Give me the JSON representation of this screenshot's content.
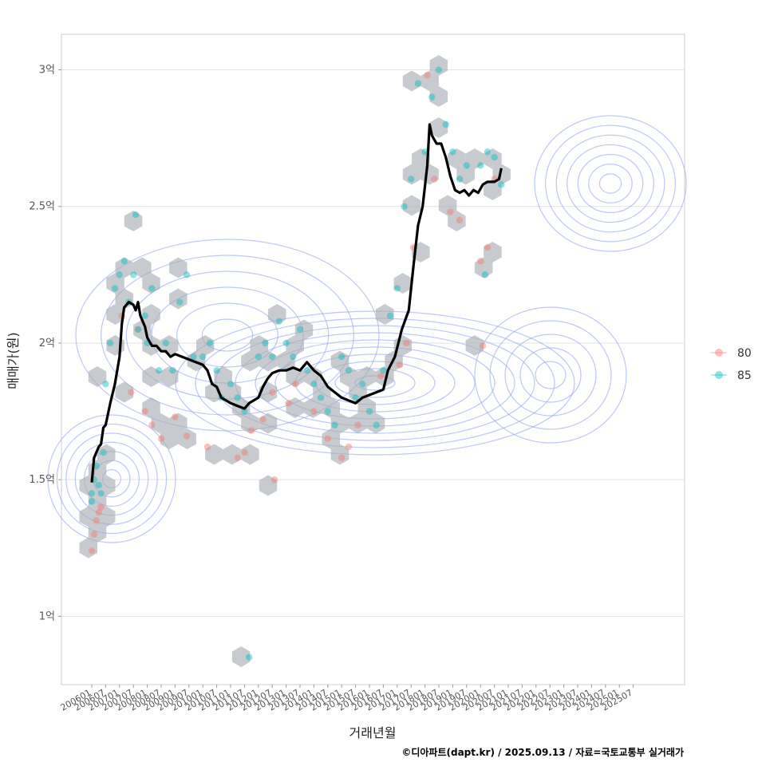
{
  "chart_data": {
    "type": "scatter",
    "title": "",
    "xlabel": "거래년월",
    "ylabel": "매매가(원)",
    "caption": "©디아파트(dapt.kr) / 2025.09.13 / 자료=국토교통부 실거래가",
    "y_ticks": [
      {
        "value": 1.0,
        "label": "1억"
      },
      {
        "value": 1.5,
        "label": "1.5억"
      },
      {
        "value": 2.0,
        "label": "2억"
      },
      {
        "value": 2.5,
        "label": "2.5억"
      },
      {
        "value": 3.0,
        "label": "3억"
      }
    ],
    "x_ticks": [
      "200601",
      "200607",
      "200701",
      "200707",
      "200801",
      "200807",
      "200901",
      "200907",
      "201001",
      "201007",
      "201101",
      "201107",
      "201201",
      "201207",
      "201301",
      "201307",
      "201401",
      "201407",
      "201501",
      "201507",
      "201601",
      "201607",
      "201701",
      "201707",
      "201801",
      "201807",
      "201901",
      "201907",
      "202001",
      "202007",
      "202101",
      "202107",
      "202201",
      "202207",
      "202301",
      "202307",
      "202401",
      "202407",
      "202501",
      "202507"
    ],
    "ylim": [
      0.75,
      3.13
    ],
    "grid": true,
    "legend_position": "right",
    "colors": {
      "series_80": "#F8766D",
      "series_85": "#00BFC4",
      "hexbin": "#A9AEB3",
      "density": "#8FA3F0",
      "trend": "#000000",
      "grid": "#E3E3E3",
      "frame": "#CCCCCC"
    },
    "legend": [
      {
        "label": "80",
        "color": "#F8766D"
      },
      {
        "label": "85",
        "color": "#00BFC4"
      }
    ],
    "trend_line": [
      [
        "200601",
        1.49
      ],
      [
        "200602",
        1.58
      ],
      [
        "200603",
        1.6
      ],
      [
        "200604",
        1.62
      ],
      [
        "200605",
        1.63
      ],
      [
        "200606",
        1.69
      ],
      [
        "200607",
        1.7
      ],
      [
        "200609",
        1.78
      ],
      [
        "200611",
        1.85
      ],
      [
        "200701",
        1.95
      ],
      [
        "200702",
        2.07
      ],
      [
        "200703",
        2.13
      ],
      [
        "200705",
        2.15
      ],
      [
        "200707",
        2.14
      ],
      [
        "200708",
        2.12
      ],
      [
        "200709",
        2.15
      ],
      [
        "200710",
        2.1
      ],
      [
        "200712",
        2.06
      ],
      [
        "200801",
        2.02
      ],
      [
        "200803",
        1.99
      ],
      [
        "200805",
        1.99
      ],
      [
        "200807",
        1.97
      ],
      [
        "200809",
        1.97
      ],
      [
        "200811",
        1.95
      ],
      [
        "200901",
        1.96
      ],
      [
        "200904",
        1.95
      ],
      [
        "200907",
        1.94
      ],
      [
        "200910",
        1.93
      ],
      [
        "201001",
        1.92
      ],
      [
        "201003",
        1.9
      ],
      [
        "201005",
        1.85
      ],
      [
        "201007",
        1.84
      ],
      [
        "201009",
        1.8
      ],
      [
        "201101",
        1.78
      ],
      [
        "201104",
        1.77
      ],
      [
        "201107",
        1.76
      ],
      [
        "201109",
        1.78
      ],
      [
        "201201",
        1.8
      ],
      [
        "201203",
        1.84
      ],
      [
        "201205",
        1.87
      ],
      [
        "201207",
        1.89
      ],
      [
        "201210",
        1.9
      ],
      [
        "201301",
        1.9
      ],
      [
        "201304",
        1.91
      ],
      [
        "201307",
        1.9
      ],
      [
        "201310",
        1.93
      ],
      [
        "201401",
        1.9
      ],
      [
        "201404",
        1.88
      ],
      [
        "201407",
        1.84
      ],
      [
        "201410",
        1.82
      ],
      [
        "201501",
        1.8
      ],
      [
        "201504",
        1.79
      ],
      [
        "201507",
        1.78
      ],
      [
        "201510",
        1.8
      ],
      [
        "201601",
        1.81
      ],
      [
        "201604",
        1.82
      ],
      [
        "201607",
        1.83
      ],
      [
        "201609",
        1.9
      ],
      [
        "201612",
        1.95
      ],
      [
        "201703",
        2.05
      ],
      [
        "201706",
        2.12
      ],
      [
        "201708",
        2.28
      ],
      [
        "201710",
        2.43
      ],
      [
        "201712",
        2.5
      ],
      [
        "201802",
        2.65
      ],
      [
        "201803",
        2.8
      ],
      [
        "201804",
        2.76
      ],
      [
        "201806",
        2.73
      ],
      [
        "201808",
        2.73
      ],
      [
        "201810",
        2.68
      ],
      [
        "201812",
        2.61
      ],
      [
        "201902",
        2.56
      ],
      [
        "201904",
        2.55
      ],
      [
        "201906",
        2.56
      ],
      [
        "201908",
        2.54
      ],
      [
        "201910",
        2.56
      ],
      [
        "201912",
        2.55
      ],
      [
        "202002",
        2.58
      ],
      [
        "202004",
        2.59
      ],
      [
        "202007",
        2.59
      ],
      [
        "202009",
        2.6
      ],
      [
        "202010",
        2.64
      ]
    ],
    "series": [
      {
        "name": "80",
        "points": [
          [
            "200601",
            1.24
          ],
          [
            "200602",
            1.3
          ],
          [
            "200603",
            1.35
          ],
          [
            "200604",
            1.38
          ],
          [
            "200605",
            1.4
          ],
          [
            "200702",
            2.1
          ],
          [
            "200706",
            1.82
          ],
          [
            "200709",
            2.05
          ],
          [
            "200712",
            1.75
          ],
          [
            "200803",
            1.7
          ],
          [
            "200807",
            1.65
          ],
          [
            "200901",
            1.73
          ],
          [
            "200906",
            1.66
          ],
          [
            "201003",
            1.62
          ],
          [
            "201104",
            1.58
          ],
          [
            "201107",
            1.6
          ],
          [
            "201110",
            1.68
          ],
          [
            "201203",
            1.72
          ],
          [
            "201207",
            1.82
          ],
          [
            "201302",
            1.78
          ],
          [
            "201305",
            1.85
          ],
          [
            "201401",
            1.75
          ],
          [
            "201407",
            1.65
          ],
          [
            "201501",
            1.58
          ],
          [
            "201504",
            1.62
          ],
          [
            "201508",
            1.7
          ],
          [
            "201606",
            1.88
          ],
          [
            "201702",
            1.92
          ],
          [
            "201705",
            2.0
          ],
          [
            "201708",
            2.35
          ],
          [
            "201802",
            2.98
          ],
          [
            "201805",
            2.6
          ],
          [
            "201812",
            2.48
          ],
          [
            "201904",
            2.45
          ],
          [
            "202001",
            2.3
          ],
          [
            "202004",
            2.35
          ],
          [
            "202007",
            2.6
          ],
          [
            "202002",
            1.99
          ],
          [
            "201208",
            1.5
          ]
        ]
      },
      {
        "name": "85",
        "points": [
          [
            "200601",
            1.42
          ],
          [
            "200601",
            1.45
          ],
          [
            "200602",
            1.5
          ],
          [
            "200603",
            1.55
          ],
          [
            "200604",
            1.48
          ],
          [
            "200605",
            1.45
          ],
          [
            "200606",
            1.6
          ],
          [
            "200607",
            1.85
          ],
          [
            "200609",
            2.0
          ],
          [
            "200611",
            2.2
          ],
          [
            "200701",
            2.25
          ],
          [
            "200703",
            2.3
          ],
          [
            "200705",
            2.15
          ],
          [
            "200707",
            2.25
          ],
          [
            "200708",
            2.47
          ],
          [
            "200709",
            2.05
          ],
          [
            "200712",
            2.1
          ],
          [
            "200801",
            2.0
          ],
          [
            "200803",
            2.2
          ],
          [
            "200806",
            1.9
          ],
          [
            "200809",
            2.0
          ],
          [
            "200812",
            1.9
          ],
          [
            "200903",
            2.15
          ],
          [
            "200906",
            2.25
          ],
          [
            "200909",
            1.95
          ],
          [
            "201001",
            1.95
          ],
          [
            "201004",
            2.0
          ],
          [
            "201007",
            1.9
          ],
          [
            "201009",
            1.8
          ],
          [
            "201101",
            1.85
          ],
          [
            "201104",
            1.8
          ],
          [
            "201107",
            1.75
          ],
          [
            "201109",
            0.85
          ],
          [
            "201201",
            1.95
          ],
          [
            "201204",
            2.0
          ],
          [
            "201207",
            1.95
          ],
          [
            "201210",
            2.08
          ],
          [
            "201301",
            2.0
          ],
          [
            "201304",
            1.95
          ],
          [
            "201307",
            2.05
          ],
          [
            "201310",
            1.9
          ],
          [
            "201401",
            1.85
          ],
          [
            "201404",
            1.8
          ],
          [
            "201407",
            1.75
          ],
          [
            "201410",
            1.7
          ],
          [
            "201501",
            1.95
          ],
          [
            "201504",
            1.9
          ],
          [
            "201507",
            1.8
          ],
          [
            "201510",
            1.85
          ],
          [
            "201601",
            1.75
          ],
          [
            "201604",
            1.7
          ],
          [
            "201607",
            1.9
          ],
          [
            "201610",
            2.1
          ],
          [
            "201701",
            2.2
          ],
          [
            "201704",
            2.5
          ],
          [
            "201707",
            2.6
          ],
          [
            "201710",
            2.95
          ],
          [
            "201801",
            2.7
          ],
          [
            "201804",
            2.9
          ],
          [
            "201807",
            3.0
          ],
          [
            "201810",
            2.8
          ],
          [
            "201901",
            2.7
          ],
          [
            "201904",
            2.6
          ],
          [
            "201907",
            2.65
          ],
          [
            "202001",
            2.65
          ],
          [
            "202004",
            2.7
          ],
          [
            "202007",
            2.68
          ],
          [
            "202010",
            2.58
          ],
          [
            "202003",
            2.25
          ]
        ]
      }
    ]
  }
}
